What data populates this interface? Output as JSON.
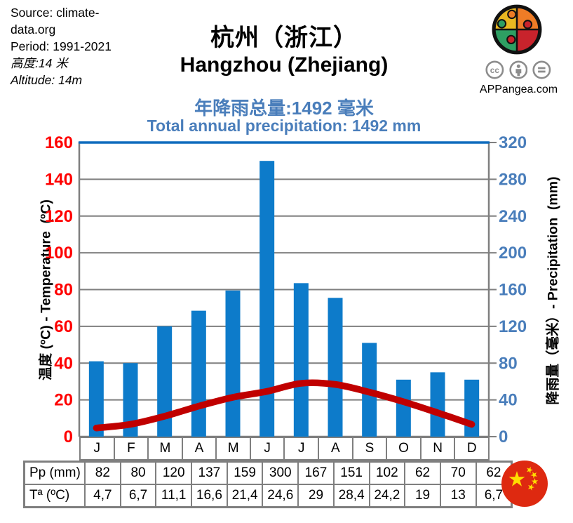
{
  "meta": {
    "source_line": "Source: climate-data.org",
    "period_line": "Period: 1991-2021",
    "altitude_zh": "高度:14 米",
    "altitude_en": "Altitude: 14m"
  },
  "header": {
    "title_zh": "杭州（浙江）",
    "title_en": "Hangzhou (Zhejiang)",
    "subtitle_zh": "年降雨总量:1492 毫米",
    "subtitle_en": "Total annual precipitation: 1492 mm",
    "subtitle_color": "#4a7ebb"
  },
  "branding": {
    "site": "APPangea.com",
    "license_icons": [
      "cc",
      "attribution",
      "no-derivatives"
    ],
    "icon_color": "#8c8c8c",
    "logo_colors": {
      "top_left": "#e9b821",
      "top_right": "#ee7c26",
      "bottom_left": "#2e9f63",
      "bottom_right": "#c8232c",
      "outline": "#111111"
    }
  },
  "chart_data": {
    "type": "bar+line",
    "categories": [
      "J",
      "F",
      "M",
      "A",
      "M",
      "J",
      "J",
      "A",
      "S",
      "O",
      "N",
      "D"
    ],
    "series": [
      {
        "name": "Pp (mm)",
        "type": "bar",
        "axis": "right",
        "color": "#0d7bca",
        "values": [
          82,
          80,
          120,
          137,
          159,
          300,
          167,
          151,
          102,
          62,
          70,
          62
        ]
      },
      {
        "name": "Tª (ºC)",
        "type": "line",
        "axis": "left",
        "color": "#c00000",
        "values": [
          4.7,
          6.7,
          11.1,
          16.6,
          21.4,
          24.6,
          29,
          28.4,
          24.2,
          19,
          13,
          6.7
        ]
      }
    ],
    "left_axis": {
      "label": "温度 (ºC) - Temperature  (ºC)",
      "min": 0,
      "max": 160,
      "step": 20,
      "color": "#ff0000"
    },
    "right_axis": {
      "label": "降雨量（毫米）- Precipitation  (mm)",
      "min": 0,
      "max": 320,
      "step": 40,
      "color": "#4a7ebb"
    },
    "grid": true,
    "gridline_color": "#7f7f7f",
    "top_border_color": "#0f6cbd",
    "title": "杭州（浙江） Hangzhou (Zhejiang)",
    "subtitle": "Total annual precipitation: 1492 mm",
    "total_annual_precipitation_mm": 1492
  },
  "table": {
    "row_labels": [
      "Pp (mm)",
      "Tª (ºC)"
    ],
    "rows": [
      [
        "82",
        "80",
        "120",
        "137",
        "159",
        "300",
        "167",
        "151",
        "102",
        "62",
        "70",
        "62"
      ],
      [
        "4,7",
        "6,7",
        "11,1",
        "16,6",
        "21,4",
        "24,6",
        "29",
        "28,4",
        "24,2",
        "19",
        "13",
        "6,7"
      ]
    ]
  },
  "flag": {
    "country": "china",
    "red": "#de2910",
    "yellow": "#ffde00"
  }
}
